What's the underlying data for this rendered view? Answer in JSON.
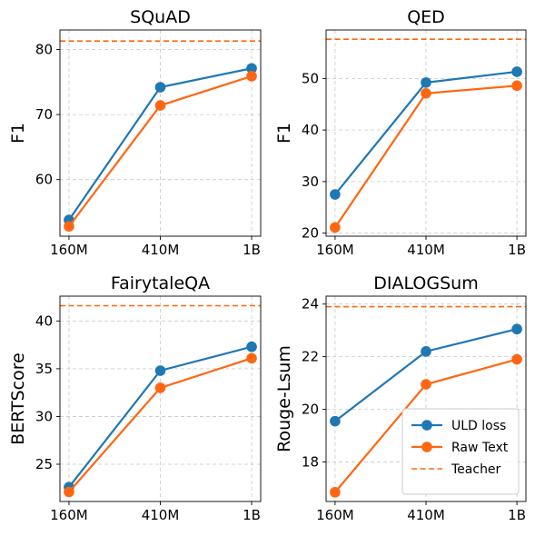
{
  "chart_data": [
    {
      "type": "line",
      "title": "SQuAD",
      "xlabel": "",
      "ylabel": "F1",
      "categories": [
        "160M",
        "410M",
        "1B"
      ],
      "ylim": [
        51.3,
        83.0
      ],
      "yticks": [
        60,
        70,
        80
      ],
      "grid": true,
      "series": [
        {
          "name": "ULD loss",
          "values": [
            53.8,
            74.2,
            77.1
          ],
          "color": "#1f77b4"
        },
        {
          "name": "Raw Text",
          "values": [
            52.8,
            71.4,
            75.9
          ],
          "color": "#ff6611"
        }
      ],
      "teacher": {
        "name": "Teacher",
        "value": 81.3,
        "color": "#ff6611"
      }
    },
    {
      "type": "line",
      "title": "QED",
      "xlabel": "",
      "ylabel": "F1",
      "categories": [
        "160M",
        "410M",
        "1B"
      ],
      "ylim": [
        19.4,
        59.4
      ],
      "yticks": [
        20,
        30,
        40,
        50
      ],
      "grid": true,
      "series": [
        {
          "name": "ULD loss",
          "values": [
            27.5,
            49.2,
            51.3
          ],
          "color": "#1f77b4"
        },
        {
          "name": "Raw Text",
          "values": [
            21.1,
            47.1,
            48.6
          ],
          "color": "#ff6611"
        }
      ],
      "teacher": {
        "name": "Teacher",
        "value": 57.6,
        "color": "#ff6611"
      }
    },
    {
      "type": "line",
      "title": "FairytaleQA",
      "xlabel": "",
      "ylabel": "BERTScore",
      "categories": [
        "160M",
        "410M",
        "1B"
      ],
      "ylim": [
        21.1,
        42.6
      ],
      "yticks": [
        25,
        30,
        35,
        40
      ],
      "grid": true,
      "series": [
        {
          "name": "ULD loss",
          "values": [
            22.6,
            34.8,
            37.3
          ],
          "color": "#1f77b4"
        },
        {
          "name": "Raw Text",
          "values": [
            22.1,
            33.0,
            36.1
          ],
          "color": "#ff6611"
        }
      ],
      "teacher": {
        "name": "Teacher",
        "value": 41.6,
        "color": "#ff6611"
      }
    },
    {
      "type": "line",
      "title": "DIALOGSum",
      "xlabel": "",
      "ylabel": "Rouge-Lsum",
      "categories": [
        "160M",
        "410M",
        "1B"
      ],
      "ylim": [
        16.5,
        24.3
      ],
      "yticks": [
        18,
        20,
        22,
        24
      ],
      "grid": true,
      "series": [
        {
          "name": "ULD loss",
          "values": [
            19.55,
            22.2,
            23.05
          ],
          "color": "#1f77b4"
        },
        {
          "name": "Raw Text",
          "values": [
            16.85,
            20.95,
            21.9
          ],
          "color": "#ff6611"
        }
      ],
      "teacher": {
        "name": "Teacher",
        "value": 23.9,
        "color": "#ff6611"
      },
      "legend": {
        "placement": "lower-right",
        "entries": [
          "ULD loss",
          "Raw Text",
          "Teacher"
        ]
      }
    }
  ]
}
